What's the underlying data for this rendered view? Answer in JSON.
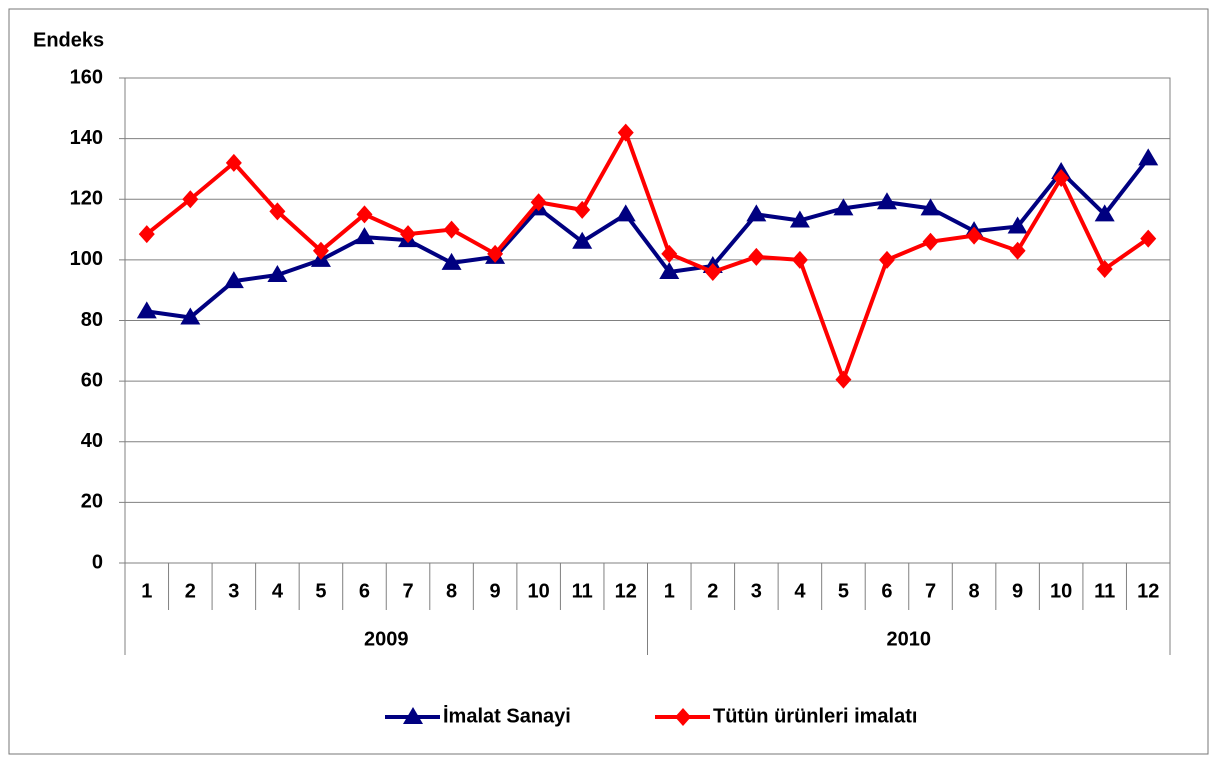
{
  "chart_data": {
    "type": "line",
    "y_label": "Endeks",
    "categories": [
      "1",
      "2",
      "3",
      "4",
      "5",
      "6",
      "7",
      "8",
      "9",
      "10",
      "11",
      "12",
      "1",
      "2",
      "3",
      "4",
      "5",
      "6",
      "7",
      "8",
      "9",
      "10",
      "11",
      "12"
    ],
    "category_groups": [
      "2009",
      "2010"
    ],
    "series": [
      {
        "name": "İmalat Sanayi",
        "color": "#000080",
        "marker": "triangle",
        "values": [
          83,
          81,
          93,
          95,
          100,
          107.5,
          106.5,
          99,
          101,
          117,
          106,
          115,
          96,
          98,
          115,
          113,
          117,
          119,
          117,
          109.5,
          111,
          129,
          115,
          133.5
        ]
      },
      {
        "name": "Tütün ürünleri imalatı",
        "color": "#ff0000",
        "marker": "diamond",
        "values": [
          108.5,
          120,
          132,
          116,
          103,
          115,
          108.5,
          110,
          102,
          119,
          116.5,
          142,
          102,
          96,
          101,
          100,
          60.5,
          100,
          106,
          108,
          103,
          127,
          97,
          107
        ]
      }
    ],
    "ylim": [
      0,
      160
    ],
    "yticks": [
      0,
      20,
      40,
      60,
      80,
      100,
      120,
      140,
      160
    ],
    "grid": true,
    "legend": "bottom"
  }
}
